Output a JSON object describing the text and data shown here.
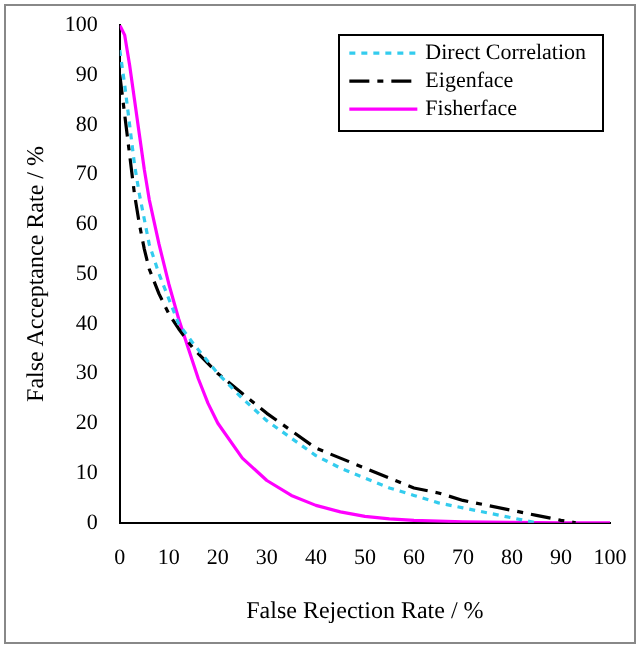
{
  "chart_data": {
    "type": "line",
    "xlabel": "False Rejection Rate / %",
    "ylabel": "False Acceptance Rate / %",
    "xlim": [
      0,
      100
    ],
    "ylim": [
      0,
      100
    ],
    "xticks": [
      0,
      10,
      20,
      30,
      40,
      50,
      60,
      70,
      80,
      90,
      100
    ],
    "yticks": [
      0,
      10,
      20,
      30,
      40,
      50,
      60,
      70,
      80,
      90,
      100
    ],
    "grid": false,
    "legend": "top right",
    "marker": "none",
    "series": [
      {
        "name": "Direct Correlation",
        "color": "#33ccee",
        "line_style": "dotted",
        "x": [
          0,
          1,
          2,
          3,
          4,
          5,
          6,
          8,
          10,
          12,
          15,
          20,
          25,
          30,
          35,
          40,
          45,
          50,
          55,
          60,
          65,
          70,
          75,
          80,
          85
        ],
        "values": [
          95,
          88,
          80,
          72,
          66,
          61,
          56,
          50,
          45,
          40,
          36,
          30,
          25,
          20.5,
          17,
          13.5,
          11,
          9,
          7,
          5.5,
          4,
          3,
          2,
          1,
          0
        ]
      },
      {
        "name": "Eigenface",
        "color": "#000000",
        "line_style": "dashdot",
        "x": [
          0,
          1,
          2,
          3,
          4,
          5,
          6,
          8,
          10,
          12,
          15,
          20,
          25,
          30,
          35,
          40,
          45,
          50,
          55,
          60,
          65,
          70,
          75,
          80,
          85,
          90,
          93
        ],
        "values": [
          90,
          82,
          74,
          66,
          60,
          55,
          51,
          46,
          42,
          39,
          35,
          30,
          26,
          22,
          18.5,
          15,
          13,
          11,
          9,
          7,
          6,
          4.5,
          3.5,
          2.5,
          1.5,
          0.5,
          0
        ]
      },
      {
        "name": "Fisherface",
        "color": "#ff00ff",
        "line_style": "solid",
        "x": [
          0,
          1,
          2,
          3,
          4,
          5,
          6,
          8,
          10,
          12,
          14,
          16,
          18,
          20,
          25,
          30,
          35,
          40,
          45,
          50,
          55,
          60,
          70,
          80,
          90,
          100
        ],
        "values": [
          100,
          98,
          92,
          85,
          78,
          71,
          65,
          56,
          48,
          41,
          35,
          29,
          24,
          20,
          13,
          8.5,
          5.5,
          3.5,
          2.2,
          1.3,
          0.8,
          0.5,
          0.2,
          0.1,
          0,
          0
        ]
      }
    ]
  }
}
